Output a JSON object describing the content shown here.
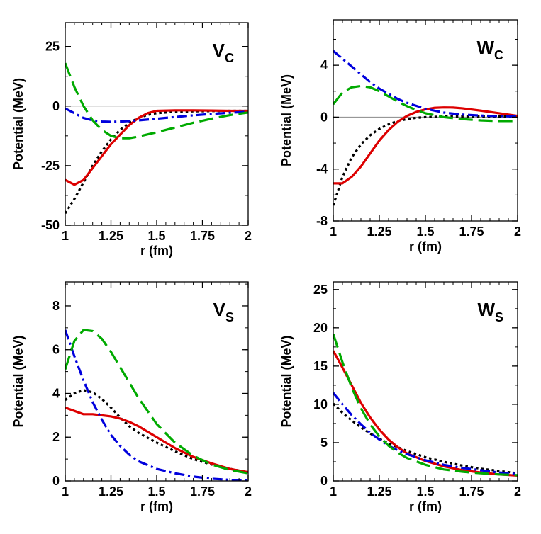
{
  "chart_data": [
    {
      "id": "vc",
      "type": "line",
      "panel_label": "V",
      "panel_label_sub": "C",
      "xlabel": "r (fm)",
      "ylabel": "Potential (MeV)",
      "xlim": [
        1,
        2
      ],
      "ylim": [
        -50,
        35
      ],
      "xticks": [
        1,
        1.25,
        1.5,
        1.75,
        2
      ],
      "xtick_labels": [
        "1",
        "1.25",
        "1.5",
        "1.75",
        "2"
      ],
      "yticks": [
        -50,
        -25,
        0,
        25
      ],
      "ytick_labels": [
        "-50",
        "-25",
        "0",
        "25"
      ],
      "zero_line": true,
      "series": [
        {
          "color": "#000000",
          "style": "dotted",
          "x": [
            1,
            1.05,
            1.1,
            1.15,
            1.2,
            1.25,
            1.3,
            1.35,
            1.4,
            1.45,
            1.5,
            1.6,
            1.7,
            1.8,
            1.9,
            2
          ],
          "y": [
            -45,
            -39,
            -32,
            -25,
            -19,
            -14,
            -10,
            -7,
            -5,
            -3.7,
            -3,
            -2.4,
            -2.2,
            -2.1,
            -2,
            -2
          ]
        },
        {
          "color": "#dd0000",
          "style": "solid",
          "x": [
            1,
            1.05,
            1.1,
            1.15,
            1.2,
            1.25,
            1.3,
            1.35,
            1.4,
            1.45,
            1.5,
            1.6,
            1.7,
            1.8,
            1.9,
            2
          ],
          "y": [
            -31,
            -33,
            -31,
            -26,
            -21,
            -16,
            -12,
            -8,
            -5,
            -3,
            -2,
            -1.8,
            -1.8,
            -1.9,
            -2,
            -2
          ]
        },
        {
          "color": "#0000dd",
          "style": "dashdot",
          "x": [
            1,
            1.05,
            1.1,
            1.15,
            1.2,
            1.25,
            1.3,
            1.35,
            1.4,
            1.5,
            1.6,
            1.7,
            1.8,
            1.9,
            2
          ],
          "y": [
            -1,
            -3,
            -5,
            -6,
            -6.5,
            -6.6,
            -6.5,
            -6.3,
            -6,
            -5.3,
            -4.6,
            -3.9,
            -3.3,
            -2.8,
            -2.4
          ]
        },
        {
          "color": "#00aa00",
          "style": "dashed",
          "x": [
            1,
            1.05,
            1.1,
            1.15,
            1.2,
            1.25,
            1.3,
            1.35,
            1.4,
            1.5,
            1.6,
            1.7,
            1.8,
            1.9,
            2
          ],
          "y": [
            18,
            8,
            0,
            -6,
            -10,
            -12.5,
            -13.5,
            -13.5,
            -12.8,
            -11,
            -9,
            -7,
            -5.3,
            -3.8,
            -2.7
          ]
        }
      ]
    },
    {
      "id": "wc",
      "type": "line",
      "panel_label": "W",
      "panel_label_sub": "C",
      "xlabel": "r (fm)",
      "ylabel": "Potential (MeV)",
      "xlim": [
        1,
        2
      ],
      "ylim": [
        -8,
        7.5
      ],
      "xticks": [
        1,
        1.25,
        1.5,
        1.75,
        2
      ],
      "xtick_labels": [
        "1",
        "1.25",
        "1.5",
        "1.75",
        "2"
      ],
      "yticks": [
        -8,
        -4,
        0,
        4
      ],
      "ytick_labels": [
        "-8",
        "-4",
        "0",
        "4"
      ],
      "zero_line": true,
      "series": [
        {
          "color": "#000000",
          "style": "dotted",
          "x": [
            1,
            1.05,
            1.1,
            1.15,
            1.2,
            1.25,
            1.3,
            1.35,
            1.4,
            1.45,
            1.5,
            1.6,
            1.7,
            1.8,
            1.9,
            2
          ],
          "y": [
            -6.8,
            -4.6,
            -3.1,
            -2.1,
            -1.4,
            -0.9,
            -0.55,
            -0.3,
            -0.15,
            -0.05,
            0,
            0.05,
            0.05,
            0.05,
            0.05,
            0.05
          ]
        },
        {
          "color": "#dd0000",
          "style": "solid",
          "x": [
            1,
            1.05,
            1.1,
            1.15,
            1.2,
            1.25,
            1.3,
            1.35,
            1.4,
            1.45,
            1.5,
            1.55,
            1.6,
            1.65,
            1.7,
            1.8,
            1.9,
            2
          ],
          "y": [
            -5.1,
            -5.1,
            -4.6,
            -3.8,
            -2.8,
            -1.8,
            -1,
            -0.35,
            0.1,
            0.4,
            0.6,
            0.72,
            0.75,
            0.74,
            0.68,
            0.5,
            0.3,
            0.1
          ]
        },
        {
          "color": "#0000dd",
          "style": "dashdot",
          "x": [
            1,
            1.05,
            1.1,
            1.15,
            1.2,
            1.25,
            1.3,
            1.35,
            1.4,
            1.5,
            1.6,
            1.7,
            1.8,
            1.9,
            2
          ],
          "y": [
            5.1,
            4.5,
            3.9,
            3.3,
            2.7,
            2.2,
            1.8,
            1.4,
            1.1,
            0.65,
            0.35,
            0.2,
            0.12,
            0.08,
            0.05
          ]
        },
        {
          "color": "#00aa00",
          "style": "dashed",
          "x": [
            1,
            1.05,
            1.1,
            1.15,
            1.2,
            1.25,
            1.3,
            1.35,
            1.4,
            1.45,
            1.5,
            1.6,
            1.7,
            1.8,
            1.9,
            2
          ],
          "y": [
            1,
            1.9,
            2.3,
            2.4,
            2.3,
            2,
            1.6,
            1.2,
            0.85,
            0.55,
            0.3,
            0,
            -0.15,
            -0.25,
            -0.3,
            -0.3
          ]
        }
      ]
    },
    {
      "id": "vs",
      "type": "line",
      "panel_label": "V",
      "panel_label_sub": "S",
      "xlabel": "r (fm)",
      "ylabel": "Potential (MeV)",
      "xlim": [
        1,
        2
      ],
      "ylim": [
        0,
        9.1
      ],
      "xticks": [
        1,
        1.25,
        1.5,
        1.75,
        2
      ],
      "xtick_labels": [
        "1",
        "1.25",
        "1.5",
        "1.75",
        "2"
      ],
      "yticks": [
        0,
        2,
        4,
        6,
        8
      ],
      "ytick_labels": [
        "0",
        "2",
        "4",
        "6",
        "8"
      ],
      "zero_line": false,
      "series": [
        {
          "color": "#000000",
          "style": "dotted",
          "x": [
            1,
            1.05,
            1.1,
            1.15,
            1.2,
            1.25,
            1.3,
            1.35,
            1.4,
            1.5,
            1.6,
            1.7,
            1.8,
            1.9,
            2
          ],
          "y": [
            3.7,
            4,
            4.15,
            4.05,
            3.75,
            3.35,
            2.9,
            2.5,
            2.2,
            1.75,
            1.35,
            1.0,
            0.75,
            0.55,
            0.4
          ]
        },
        {
          "color": "#dd0000",
          "style": "solid",
          "x": [
            1,
            1.05,
            1.1,
            1.15,
            1.2,
            1.25,
            1.3,
            1.35,
            1.4,
            1.45,
            1.5,
            1.6,
            1.7,
            1.8,
            1.9,
            2
          ],
          "y": [
            3.35,
            3.2,
            3.05,
            3.05,
            3.0,
            2.95,
            2.85,
            2.7,
            2.5,
            2.25,
            2.0,
            1.5,
            1.1,
            0.8,
            0.55,
            0.4
          ]
        },
        {
          "color": "#0000dd",
          "style": "dashdot",
          "x": [
            1,
            1.05,
            1.1,
            1.15,
            1.2,
            1.25,
            1.3,
            1.35,
            1.4,
            1.5,
            1.6,
            1.7,
            1.8,
            1.9,
            2
          ],
          "y": [
            6.9,
            5.7,
            4.6,
            3.6,
            2.8,
            2.1,
            1.6,
            1.2,
            0.9,
            0.55,
            0.35,
            0.2,
            0.1,
            0.05,
            0.02
          ]
        },
        {
          "color": "#00aa00",
          "style": "dashed",
          "x": [
            1,
            1.05,
            1.1,
            1.15,
            1.2,
            1.25,
            1.3,
            1.35,
            1.4,
            1.5,
            1.6,
            1.7,
            1.8,
            1.9,
            2
          ],
          "y": [
            5.1,
            6.4,
            6.9,
            6.85,
            6.5,
            5.9,
            5.2,
            4.5,
            3.8,
            2.6,
            1.75,
            1.15,
            0.75,
            0.5,
            0.35
          ]
        }
      ]
    },
    {
      "id": "ws",
      "type": "line",
      "panel_label": "W",
      "panel_label_sub": "S",
      "xlabel": "r (fm)",
      "ylabel": "Potential (MeV)",
      "xlim": [
        1,
        2
      ],
      "ylim": [
        0,
        26
      ],
      "xticks": [
        1,
        1.25,
        1.5,
        1.75,
        2
      ],
      "xtick_labels": [
        "1",
        "1.25",
        "1.5",
        "1.75",
        "2"
      ],
      "yticks": [
        0,
        5,
        10,
        15,
        20,
        25
      ],
      "ytick_labels": [
        "0",
        "5",
        "10",
        "15",
        "20",
        "25"
      ],
      "zero_line": false,
      "series": [
        {
          "color": "#000000",
          "style": "dotted",
          "x": [
            1,
            1.05,
            1.1,
            1.15,
            1.2,
            1.25,
            1.3,
            1.35,
            1.4,
            1.5,
            1.6,
            1.7,
            1.8,
            1.9,
            2
          ],
          "y": [
            10.1,
            8.9,
            7.9,
            7.0,
            6.2,
            5.5,
            4.9,
            4.4,
            3.9,
            3.1,
            2.5,
            2.0,
            1.6,
            1.3,
            1.0
          ]
        },
        {
          "color": "#dd0000",
          "style": "solid",
          "x": [
            1,
            1.05,
            1.1,
            1.15,
            1.2,
            1.25,
            1.3,
            1.35,
            1.4,
            1.5,
            1.6,
            1.7,
            1.8,
            1.9,
            2
          ],
          "y": [
            17,
            14.8,
            12.5,
            10.2,
            8.3,
            6.7,
            5.4,
            4.4,
            3.6,
            2.6,
            1.9,
            1.4,
            1.1,
            0.85,
            0.7
          ]
        },
        {
          "color": "#0000dd",
          "style": "dashdot",
          "x": [
            1,
            1.05,
            1.1,
            1.15,
            1.2,
            1.25,
            1.3,
            1.35,
            1.4,
            1.5,
            1.6,
            1.7,
            1.8,
            1.9,
            2
          ],
          "y": [
            11.5,
            10,
            8.6,
            7.4,
            6.3,
            5.4,
            4.6,
            4.0,
            3.5,
            2.7,
            2.1,
            1.7,
            1.4,
            1.1,
            0.9
          ]
        },
        {
          "color": "#00aa00",
          "style": "dashed",
          "x": [
            1,
            1.05,
            1.1,
            1.15,
            1.2,
            1.25,
            1.3,
            1.35,
            1.4,
            1.5,
            1.6,
            1.7,
            1.8,
            1.9,
            2
          ],
          "y": [
            19.2,
            15.5,
            12.2,
            9.5,
            7.4,
            5.8,
            4.6,
            3.7,
            3.0,
            2.1,
            1.5,
            1.2,
            1.0,
            0.85,
            0.75
          ]
        }
      ]
    }
  ]
}
